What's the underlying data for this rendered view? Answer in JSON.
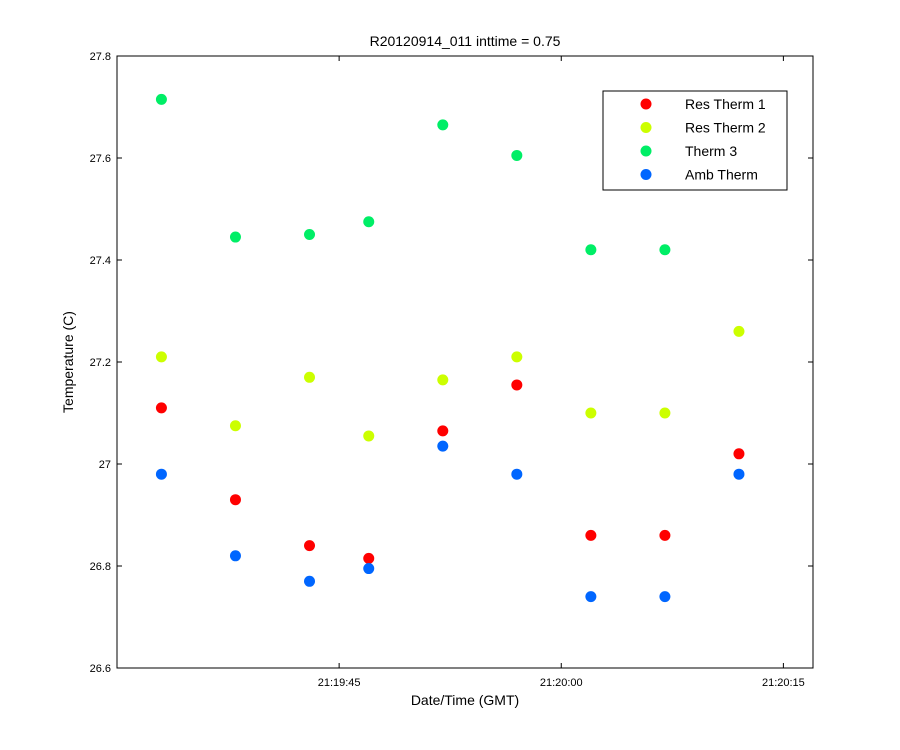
{
  "chart_data": {
    "type": "scatter",
    "title": "R20120914_011 inttime = 0.75",
    "xlabel": "Date/Time (GMT)",
    "ylabel": "Temperature (C)",
    "xlim": [
      "21:19:30",
      "21:20:17"
    ],
    "ylim": [
      26.6,
      27.8
    ],
    "x_ticks": [
      "21:19:45",
      "21:20:00",
      "21:20:15"
    ],
    "y_ticks": [
      "26.6",
      "26.8",
      "27",
      "27.2",
      "27.4",
      "27.6",
      "27.8"
    ],
    "grid": false,
    "legend_position": "top-right",
    "x": [
      "21:19:33",
      "21:19:38",
      "21:19:43",
      "21:19:47",
      "21:19:52",
      "21:19:57",
      "21:20:02",
      "21:20:07",
      "21:20:12"
    ],
    "series": [
      {
        "name": "Res Therm 1",
        "color": "#ff0000",
        "values": [
          27.11,
          26.93,
          26.84,
          26.815,
          27.065,
          27.155,
          26.86,
          26.86,
          27.02
        ]
      },
      {
        "name": "Res Therm 2",
        "color": "#ccff00",
        "values": [
          27.21,
          27.075,
          27.17,
          27.055,
          27.165,
          27.21,
          27.1,
          27.1,
          27.26
        ]
      },
      {
        "name": "Therm 3",
        "color": "#00ee66",
        "values": [
          27.715,
          27.445,
          27.45,
          27.475,
          27.665,
          27.605,
          27.42,
          27.42,
          null
        ]
      },
      {
        "name": "Amb Therm",
        "color": "#0066ff",
        "values": [
          26.98,
          26.82,
          26.77,
          26.795,
          27.035,
          26.98,
          26.74,
          26.74,
          26.98
        ]
      }
    ]
  }
}
